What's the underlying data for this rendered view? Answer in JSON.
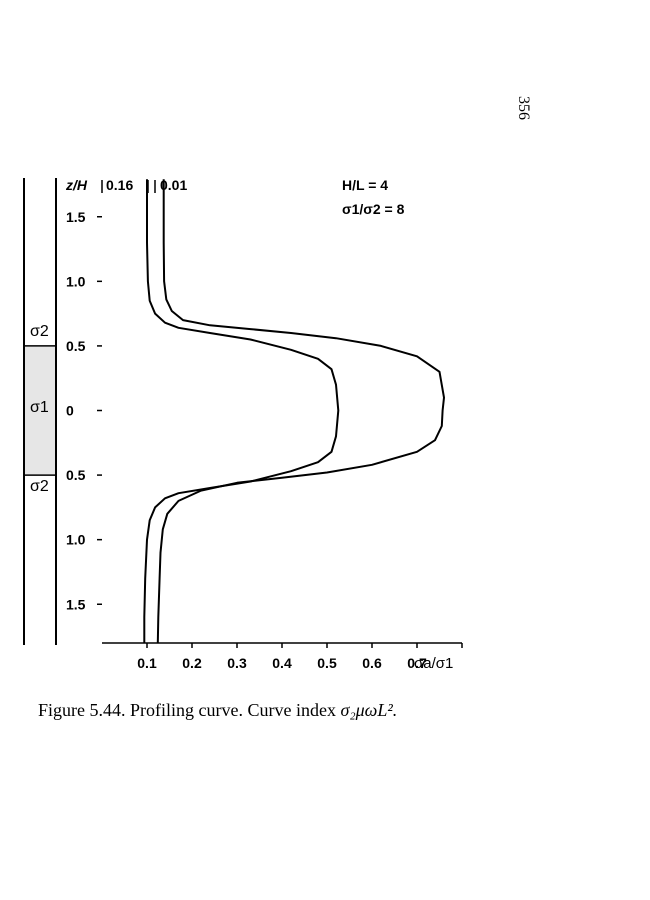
{
  "page_number": "356",
  "caption": {
    "prefix": "Figure 5.44. Profiling curve. Curve index ",
    "formula": "σ₂μωL²."
  },
  "colors": {
    "ink": "#000000",
    "layer_fill": "#e6e6e6",
    "background": "#ffffff"
  },
  "chart_data": {
    "type": "line",
    "axis_ylabel": "z/H",
    "axis_xlabel": "σa/σ1",
    "xlim": [
      0.0,
      0.8
    ],
    "ylim": [
      -1.8,
      1.8
    ],
    "x_ticks": [
      0.1,
      0.2,
      0.3,
      0.4,
      0.5,
      0.6,
      0.7
    ],
    "x_tick_labels": [
      "0.1",
      "0.2",
      "0.3",
      "0.4",
      "0.5",
      "0.6",
      "0.7"
    ],
    "y_ticks": [
      1.5,
      1.0,
      0.5,
      0,
      -0.5,
      -1.0,
      -1.5
    ],
    "y_tick_labels": [
      "1.5",
      "1.0",
      "0.5",
      "0",
      "0.5",
      "1.0",
      "1.5"
    ],
    "annotations": {
      "ratio_hl": "H/L = 4",
      "ratio_sigma": "σ1/σ2 = 8"
    },
    "layer_labels": {
      "top": "σ2",
      "middle": "σ1",
      "bottom": "σ2"
    },
    "layer_boundaries": [
      0.5,
      -0.5
    ],
    "series": [
      {
        "name": "0.16",
        "points": [
          [
            0.1,
            1.79
          ],
          [
            0.1,
            1.6
          ],
          [
            0.1,
            1.3
          ],
          [
            0.102,
            1.0
          ],
          [
            0.106,
            0.85
          ],
          [
            0.118,
            0.75
          ],
          [
            0.14,
            0.68
          ],
          [
            0.17,
            0.64
          ],
          [
            0.24,
            0.6
          ],
          [
            0.33,
            0.55
          ],
          [
            0.42,
            0.47
          ],
          [
            0.48,
            0.4
          ],
          [
            0.51,
            0.32
          ],
          [
            0.52,
            0.2
          ],
          [
            0.525,
            0.0
          ],
          [
            0.52,
            -0.2
          ],
          [
            0.51,
            -0.32
          ],
          [
            0.48,
            -0.4
          ],
          [
            0.42,
            -0.47
          ],
          [
            0.33,
            -0.55
          ],
          [
            0.24,
            -0.6
          ],
          [
            0.17,
            -0.64
          ],
          [
            0.14,
            -0.68
          ],
          [
            0.118,
            -0.75
          ],
          [
            0.106,
            -0.85
          ],
          [
            0.1,
            -1.0
          ],
          [
            0.096,
            -1.3
          ],
          [
            0.094,
            -1.6
          ],
          [
            0.094,
            -1.8
          ]
        ]
      },
      {
        "name": "0.01",
        "points": [
          [
            0.137,
            1.79
          ],
          [
            0.137,
            1.6
          ],
          [
            0.137,
            1.3
          ],
          [
            0.138,
            1.0
          ],
          [
            0.143,
            0.86
          ],
          [
            0.155,
            0.77
          ],
          [
            0.18,
            0.7
          ],
          [
            0.24,
            0.66
          ],
          [
            0.33,
            0.63
          ],
          [
            0.42,
            0.6
          ],
          [
            0.52,
            0.56
          ],
          [
            0.62,
            0.5
          ],
          [
            0.7,
            0.42
          ],
          [
            0.75,
            0.3
          ],
          [
            0.76,
            0.1
          ],
          [
            0.757,
            0.0
          ],
          [
            0.755,
            -0.12
          ],
          [
            0.74,
            -0.23
          ],
          [
            0.7,
            -0.32
          ],
          [
            0.6,
            -0.42
          ],
          [
            0.5,
            -0.48
          ],
          [
            0.4,
            -0.52
          ],
          [
            0.3,
            -0.56
          ],
          [
            0.22,
            -0.62
          ],
          [
            0.17,
            -0.7
          ],
          [
            0.145,
            -0.8
          ],
          [
            0.135,
            -0.92
          ],
          [
            0.13,
            -1.1
          ],
          [
            0.128,
            -1.3
          ],
          [
            0.125,
            -1.6
          ],
          [
            0.124,
            -1.8
          ]
        ]
      }
    ]
  }
}
